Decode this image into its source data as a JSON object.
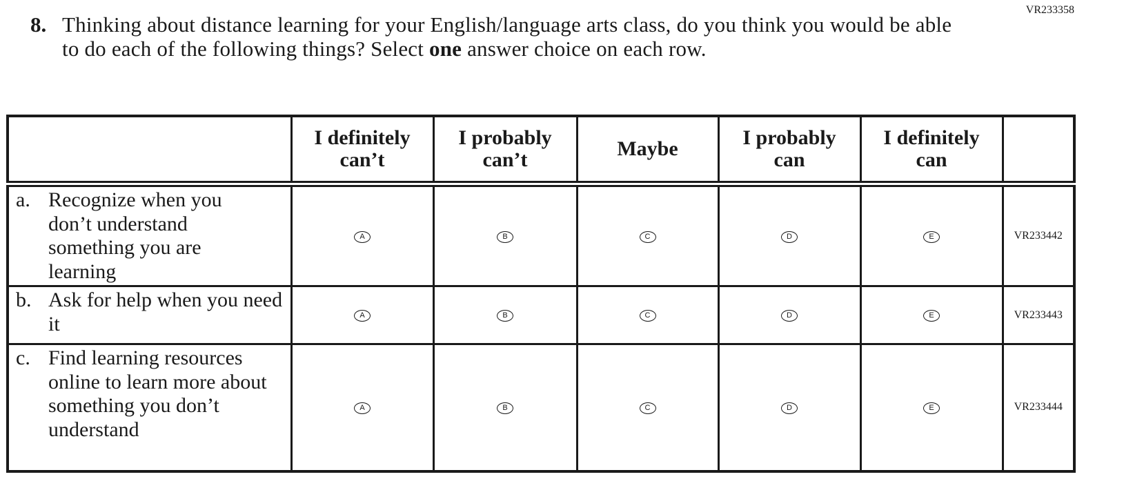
{
  "page_code": "VR233358",
  "question": {
    "number": "8.",
    "text_before_bold": "Thinking about distance learning for your English/language arts class, do you think you would be able to do each of the following things? Select ",
    "bold": "one",
    "text_after_bold": " answer choice on each row."
  },
  "columns": [
    "I definitely can’t",
    "I probably can’t",
    "Maybe",
    "I probably can",
    "I definitely can"
  ],
  "options": [
    "A",
    "B",
    "C",
    "D",
    "E"
  ],
  "rows": [
    {
      "letter": "a.",
      "text": "Recognize when you don’t understand something you are learning",
      "code": "VR233442"
    },
    {
      "letter": "b.",
      "text": "Ask for help when you need it",
      "code": "VR233443"
    },
    {
      "letter": "c.",
      "text": "Find learning resources online to learn more about something you don’t understand",
      "code": "VR233444"
    }
  ]
}
